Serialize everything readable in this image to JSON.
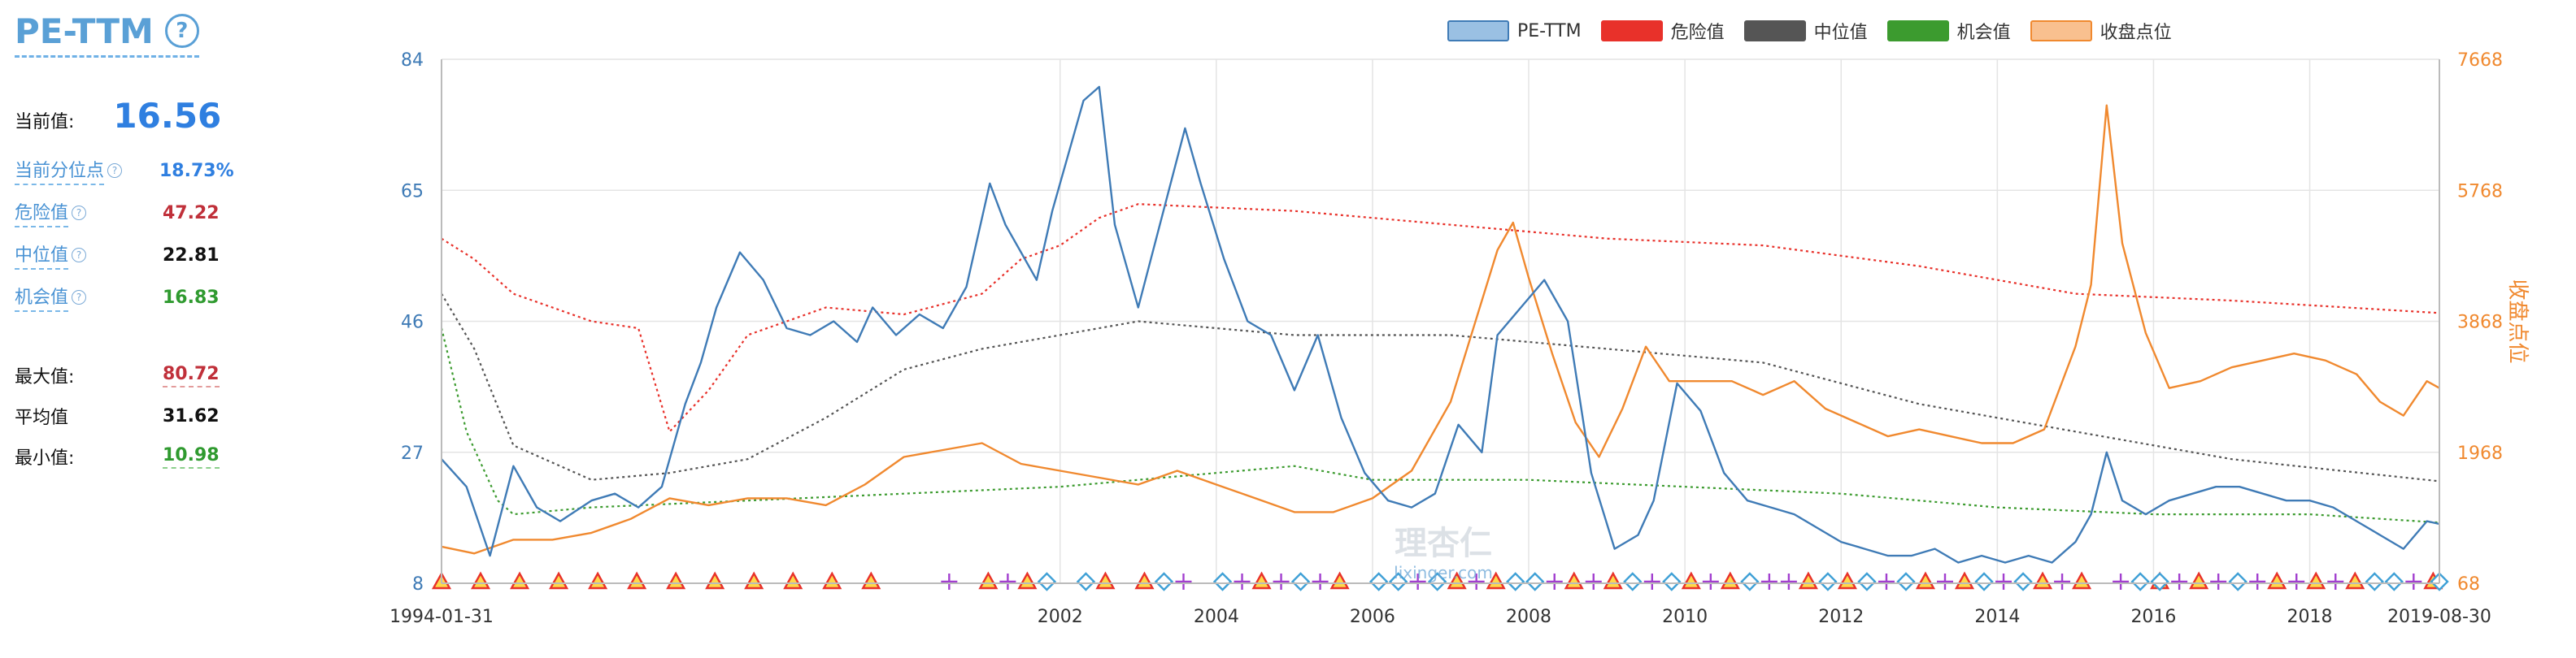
{
  "sidebar": {
    "title": "PE-TTM",
    "help": "?",
    "current_label": "当前值:",
    "current_value": "16.56",
    "percentile_label": "当前分位点",
    "percentile_value": "18.73%",
    "danger_label": "危险值",
    "danger_value": "47.22",
    "median_label": "中位值",
    "median_value": "22.81",
    "chance_label": "机会值",
    "chance_value": "16.83",
    "max_label": "最大值:",
    "max_value": "80.72",
    "avg_label": "平均值",
    "avg_value": "31.62",
    "min_label": "最小值:",
    "min_value": "10.98"
  },
  "colors": {
    "pe": "#3f7bb6",
    "danger": "#e8312a",
    "median": "#555555",
    "chance": "#3c9b2f",
    "close": "#f0892f",
    "marker_triangle": "#e8312a",
    "marker_plus": "#a23fcf",
    "marker_diamond": "#3fa0d6"
  },
  "watermark": {
    "cn": "理杏仁",
    "en": "lixinger.com"
  },
  "chart_data": {
    "type": "line",
    "legend_position": "top-center",
    "grid": true,
    "legend": [
      "PE-TTM",
      "危险值",
      "中位值",
      "机会值",
      "收盘点位"
    ],
    "x_tick_labels": [
      "1994-01-31",
      "2002",
      "2004",
      "2006",
      "2008",
      "2010",
      "2012",
      "2014",
      "2016",
      "2018",
      "2019-08-30"
    ],
    "x_tick_years": [
      1994.08,
      2002,
      2004,
      2006,
      2008,
      2010,
      2012,
      2014,
      2016,
      2018,
      2019.66
    ],
    "y_left_ticks": [
      "8",
      "27",
      "46",
      "65",
      "84"
    ],
    "y_left_range": [
      8,
      84
    ],
    "y_right_ticks": [
      "68",
      "1968",
      "3868",
      "5768",
      "7668"
    ],
    "y_right_range": [
      68,
      7668
    ],
    "y_right_label": "收盘点位",
    "x_range": [
      1994.08,
      2019.66
    ],
    "series": [
      {
        "name": "PE-TTM",
        "axis": "left",
        "style": "solid",
        "x": [
          1994.08,
          1994.4,
          1994.7,
          1995,
          1995.3,
          1995.6,
          1996,
          1996.3,
          1996.6,
          1996.9,
          1997.2,
          1997.4,
          1997.6,
          1997.9,
          1998.2,
          1998.5,
          1998.8,
          1999.1,
          1999.4,
          1999.6,
          1999.9,
          2000.2,
          2000.5,
          2000.8,
          2001.1,
          2001.3,
          2001.5,
          2001.7,
          2001.9,
          2002.1,
          2002.3,
          2002.5,
          2002.7,
          2003,
          2003.3,
          2003.6,
          2003.8,
          2004.1,
          2004.4,
          2004.7,
          2005,
          2005.3,
          2005.6,
          2005.9,
          2006.2,
          2006.5,
          2006.8,
          2007.1,
          2007.4,
          2007.6,
          2007.9,
          2008.2,
          2008.5,
          2008.8,
          2009.1,
          2009.4,
          2009.6,
          2009.9,
          2010.2,
          2010.5,
          2010.8,
          2011.1,
          2011.4,
          2011.7,
          2012,
          2012.3,
          2012.6,
          2012.9,
          2013.2,
          2013.5,
          2013.8,
          2014.1,
          2014.4,
          2014.7,
          2015,
          2015.2,
          2015.4,
          2015.6,
          2015.9,
          2016.2,
          2016.5,
          2016.8,
          2017.1,
          2017.4,
          2017.7,
          2018,
          2018.3,
          2018.6,
          2018.9,
          2019.2,
          2019.5,
          2019.66
        ],
        "y": [
          26,
          22,
          12,
          25,
          19,
          17,
          20,
          21,
          19,
          22,
          34,
          40,
          48,
          56,
          52,
          45,
          44,
          46,
          43,
          48,
          44,
          47,
          45,
          51,
          66,
          60,
          56,
          52,
          62,
          70,
          78,
          80,
          60,
          48,
          61,
          74,
          66,
          55,
          46,
          44,
          36,
          44,
          32,
          24,
          20,
          19,
          21,
          31,
          27,
          44,
          48,
          52,
          46,
          24,
          13,
          15,
          20,
          37,
          33,
          24,
          20,
          19,
          18,
          16,
          14,
          13,
          12,
          12,
          13,
          11,
          12,
          11,
          12,
          11,
          14,
          18,
          27,
          20,
          18,
          20,
          21,
          22,
          22,
          21,
          20,
          20,
          19,
          17,
          15,
          13,
          17,
          16.6
        ]
      },
      {
        "name": "危险值",
        "axis": "left",
        "style": "dotted",
        "x": [
          1994.08,
          1994.5,
          1995,
          1995.5,
          1996,
          1996.6,
          1997,
          1997.5,
          1998,
          1999,
          2000,
          2001,
          2001.5,
          2002,
          2002.5,
          2003,
          2005,
          2007,
          2009,
          2011,
          2013,
          2015,
          2017,
          2019.66
        ],
        "y": [
          58,
          55,
          50,
          48,
          46,
          45,
          30,
          36,
          44,
          48,
          47,
          50,
          55,
          57,
          61,
          63,
          62,
          60,
          58,
          57,
          54,
          50,
          49,
          47.2
        ]
      },
      {
        "name": "中位值",
        "axis": "left",
        "style": "dotted",
        "x": [
          1994.08,
          1994.5,
          1995,
          1995.2,
          1996,
          1997,
          1998,
          1999,
          2000,
          2001,
          2002,
          2003,
          2004,
          2005,
          2007,
          2009,
          2011,
          2013,
          2015,
          2017,
          2019.66
        ],
        "y": [
          50,
          42,
          28,
          27,
          23,
          24,
          26,
          32,
          39,
          42,
          44,
          46,
          45,
          44,
          44,
          42,
          40,
          34,
          30,
          26,
          22.8
        ]
      },
      {
        "name": "机会值",
        "axis": "left",
        "style": "dotted",
        "x": [
          1994.08,
          1994.4,
          1994.8,
          1995,
          1996,
          1998,
          2000,
          2002,
          2003,
          2004,
          2005,
          2006,
          2008,
          2010,
          2012,
          2014,
          2016,
          2018,
          2019.66
        ],
        "y": [
          45,
          30,
          20,
          18,
          19,
          20,
          21,
          22,
          23,
          24,
          25,
          23,
          23,
          22,
          21,
          19,
          18,
          18,
          16.8
        ]
      },
      {
        "name": "收盘点位",
        "axis": "right",
        "style": "solid",
        "x": [
          1994.08,
          1994.5,
          1995,
          1995.5,
          1996,
          1996.5,
          1997,
          1997.5,
          1998,
          1998.5,
          1999,
          1999.5,
          2000,
          2000.5,
          2001,
          2001.5,
          2002,
          2002.5,
          2003,
          2003.5,
          2004,
          2004.5,
          2005,
          2005.5,
          2006,
          2006.5,
          2007,
          2007.3,
          2007.6,
          2007.8,
          2008,
          2008.3,
          2008.6,
          2008.9,
          2009.2,
          2009.5,
          2009.8,
          2010.2,
          2010.6,
          2011,
          2011.4,
          2011.8,
          2012.2,
          2012.6,
          2013,
          2013.4,
          2013.8,
          2014.2,
          2014.6,
          2015,
          2015.2,
          2015.4,
          2015.6,
          2015.9,
          2016.2,
          2016.6,
          2017,
          2017.4,
          2017.8,
          2018.2,
          2018.6,
          2018.9,
          2019.2,
          2019.5,
          2019.66
        ],
        "y": [
          600,
          500,
          700,
          700,
          800,
          1000,
          1300,
          1200,
          1300,
          1300,
          1200,
          1500,
          1900,
          2000,
          2100,
          1800,
          1700,
          1600,
          1500,
          1700,
          1500,
          1300,
          1100,
          1100,
          1300,
          1700,
          2700,
          3800,
          4900,
          5300,
          4500,
          3400,
          2400,
          1900,
          2600,
          3500,
          3000,
          3000,
          3000,
          2800,
          3000,
          2600,
          2400,
          2200,
          2300,
          2200,
          2100,
          2100,
          2300,
          3500,
          4400,
          7000,
          5000,
          3700,
          2900,
          3000,
          3200,
          3300,
          3400,
          3300,
          3100,
          2700,
          2500,
          3000,
          2900
        ]
      }
    ],
    "markers": {
      "triangles": [
        1994.08,
        1994.58,
        1995.08,
        1995.58,
        1996.08,
        1996.58,
        1997.08,
        1997.58,
        1998.08,
        1998.58,
        1999.08,
        1999.58,
        2001.08,
        2001.58,
        2002.58,
        2003.08,
        2004.58,
        2005.58,
        2007.08,
        2007.58,
        2008.58,
        2009.08,
        2010.08,
        2010.58,
        2011.58,
        2012.08,
        2013.08,
        2013.58,
        2014.58,
        2015.08,
        2016.08,
        2016.58,
        2017.58,
        2018.08,
        2018.58,
        2019.58
      ],
      "pluses": [
        2000.58,
        2001.33,
        2003.58,
        2004.33,
        2004.83,
        2005.33,
        2006.58,
        2007.33,
        2008.33,
        2008.83,
        2009.58,
        2010.33,
        2011.08,
        2011.33,
        2012.58,
        2013.33,
        2014.08,
        2014.83,
        2015.58,
        2016.33,
        2016.83,
        2017.33,
        2017.83,
        2018.33,
        2018.83,
        2019.33
      ],
      "diamonds": [
        2001.83,
        2002.33,
        2003.33,
        2004.08,
        2005.08,
        2006.08,
        2006.33,
        2006.83,
        2007.83,
        2008.08,
        2009.33,
        2009.83,
        2010.83,
        2011.83,
        2012.33,
        2012.83,
        2013.83,
        2014.33,
        2015.83,
        2016.08,
        2017.08,
        2018.83,
        2019.08,
        2019.66
      ]
    }
  }
}
